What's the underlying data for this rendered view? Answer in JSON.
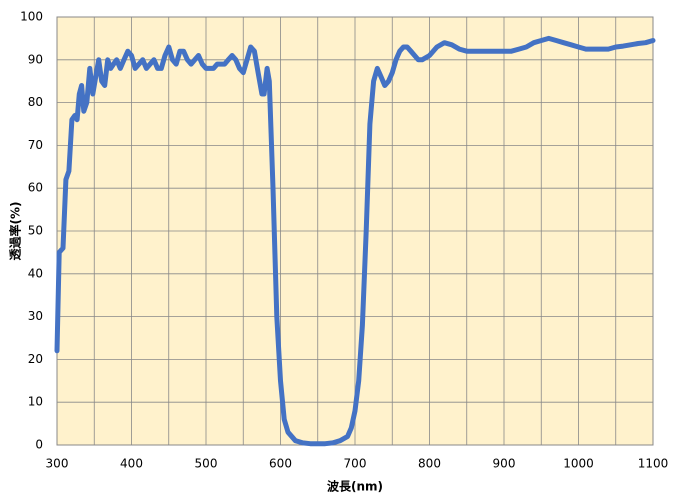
{
  "chart_data": {
    "type": "line",
    "xlabel": "波長(nm)",
    "ylabel": "透過率(%)",
    "xlim": [
      300,
      1100
    ],
    "xticks": [
      300,
      400,
      500,
      600,
      700,
      800,
      900,
      1000,
      1100
    ],
    "xminorticks": [
      350,
      450,
      550,
      650,
      750,
      850,
      950,
      1050
    ],
    "ylim": [
      0,
      100
    ],
    "yticks": [
      0,
      10,
      20,
      30,
      40,
      50,
      60,
      70,
      80,
      90,
      100
    ],
    "grid": true,
    "series": [
      {
        "color": "#4472c4",
        "x": [
          300,
          303,
          308,
          312,
          316,
          320,
          324,
          327,
          330,
          333,
          336,
          340,
          344,
          348,
          352,
          356,
          360,
          364,
          368,
          372,
          376,
          380,
          385,
          390,
          395,
          400,
          405,
          410,
          415,
          420,
          425,
          430,
          435,
          440,
          445,
          450,
          455,
          460,
          465,
          470,
          475,
          480,
          485,
          490,
          495,
          500,
          505,
          510,
          515,
          520,
          525,
          530,
          535,
          540,
          545,
          550,
          555,
          560,
          565,
          570,
          575,
          578,
          582,
          585,
          590,
          595,
          600,
          605,
          610,
          620,
          630,
          640,
          650,
          660,
          670,
          680,
          690,
          695,
          700,
          705,
          710,
          715,
          720,
          725,
          730,
          735,
          740,
          745,
          750,
          755,
          760,
          765,
          770,
          775,
          780,
          785,
          790,
          800,
          810,
          820,
          830,
          840,
          850,
          860,
          870,
          880,
          890,
          900,
          910,
          920,
          930,
          940,
          950,
          960,
          970,
          980,
          990,
          1000,
          1010,
          1020,
          1030,
          1040,
          1050,
          1060,
          1070,
          1080,
          1090,
          1100
        ],
        "values": [
          22,
          45,
          46,
          62,
          64,
          76,
          77,
          76,
          82,
          84,
          78,
          80,
          88,
          82,
          86,
          90,
          85,
          84,
          90,
          88,
          89,
          90,
          88,
          90,
          92,
          91,
          88,
          89,
          90,
          88,
          89,
          90,
          88,
          88,
          91,
          93,
          90,
          89,
          92,
          92,
          90,
          89,
          90,
          91,
          89,
          88,
          88,
          88,
          89,
          89,
          89,
          90,
          91,
          90,
          88,
          87,
          90,
          93,
          92,
          87,
          82,
          82,
          88,
          85,
          60,
          30,
          15,
          6,
          3,
          1,
          0.5,
          0.3,
          0.3,
          0.3,
          0.5,
          1,
          2,
          4,
          8,
          15,
          28,
          50,
          75,
          85,
          88,
          86,
          84,
          85,
          87,
          90,
          92,
          93,
          93,
          92,
          91,
          90,
          90,
          91,
          93,
          94,
          93.5,
          92.5,
          92,
          92,
          92,
          92,
          92,
          92,
          92,
          92.5,
          93,
          94,
          94.5,
          95,
          94.5,
          94,
          93.5,
          93,
          92.5,
          92.5,
          92.5,
          92.5,
          93,
          93.2,
          93.5,
          93.8,
          94,
          94.5
        ]
      }
    ]
  }
}
